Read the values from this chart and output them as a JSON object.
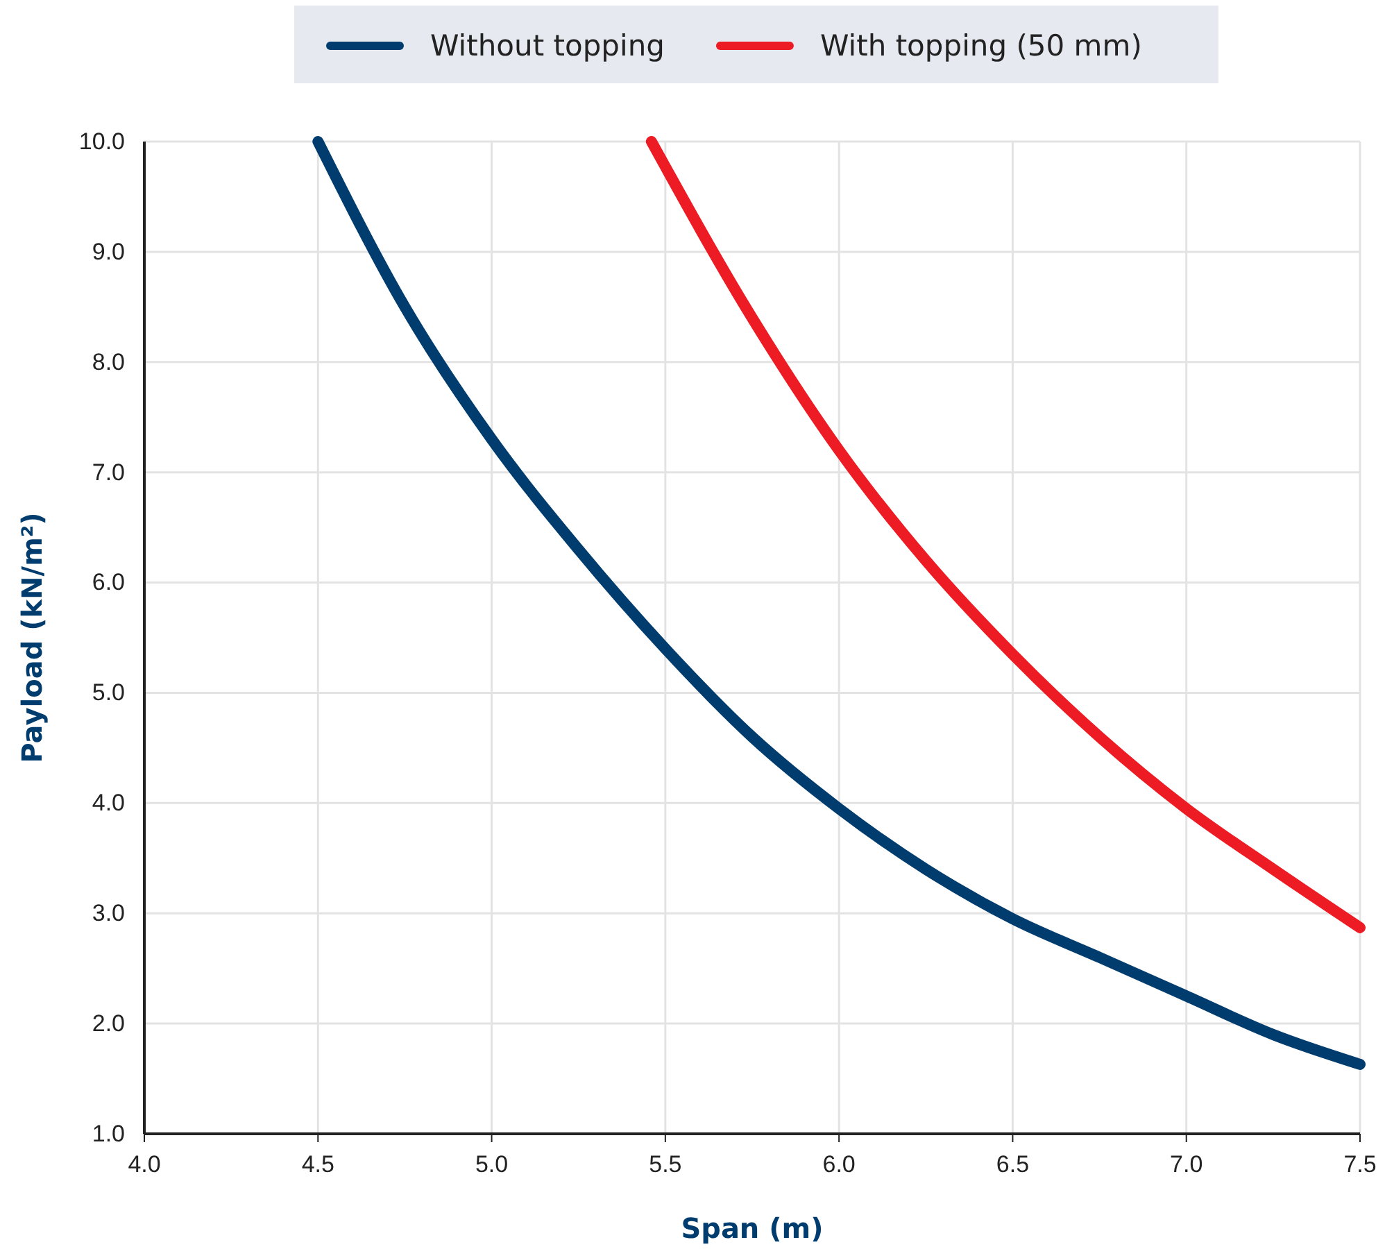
{
  "chart_data": {
    "type": "line",
    "xlabel": "Span (m)",
    "ylabel": "Payload (kN/m²)",
    "xlim": [
      4.0,
      7.5
    ],
    "ylim": [
      1.0,
      10.0
    ],
    "xticks": [
      {
        "value": 4,
        "label": "4.0"
      },
      {
        "value": 4.5,
        "label": "4.5"
      },
      {
        "value": 5,
        "label": "5.0"
      },
      {
        "value": 5.5,
        "label": "5.5"
      },
      {
        "value": 6,
        "label": "6.0"
      },
      {
        "value": 6.5,
        "label": "6.5"
      },
      {
        "value": 7,
        "label": "7.0"
      },
      {
        "value": 7.5,
        "label": "7.5"
      }
    ],
    "yticks": [
      {
        "value": 1,
        "label": "1.0"
      },
      {
        "value": 2,
        "label": "2.0"
      },
      {
        "value": 3,
        "label": "3.0"
      },
      {
        "value": 4,
        "label": "4.0"
      },
      {
        "value": 5,
        "label": "5.0"
      },
      {
        "value": 6,
        "label": "6.0"
      },
      {
        "value": 7,
        "label": "7.0"
      },
      {
        "value": 8,
        "label": "8.0"
      },
      {
        "value": 9,
        "label": "9.0"
      },
      {
        "value": 10,
        "label": "10.0"
      }
    ],
    "grid": true,
    "legend": "top",
    "marker": "none",
    "line_style": "solid",
    "series": [
      {
        "name": "Without topping",
        "color": "#003d6e",
        "x": [
          4.5,
          4.75,
          5.0,
          5.25,
          5.5,
          5.75,
          6.0,
          6.25,
          6.5,
          6.75,
          7.0,
          7.25,
          7.5
        ],
        "values": [
          10.0,
          8.5,
          7.3,
          6.3,
          5.4,
          4.6,
          3.95,
          3.4,
          2.95,
          2.6,
          2.25,
          1.9,
          1.63
        ]
      },
      {
        "name": "With topping (50 mm)",
        "color": "#ed1c24",
        "x": [
          5.46,
          5.75,
          6.0,
          6.25,
          6.5,
          6.75,
          7.0,
          7.25,
          7.5
        ],
        "values": [
          10.0,
          8.4,
          7.2,
          6.2,
          5.35,
          4.6,
          3.95,
          3.4,
          2.87
        ]
      }
    ]
  }
}
